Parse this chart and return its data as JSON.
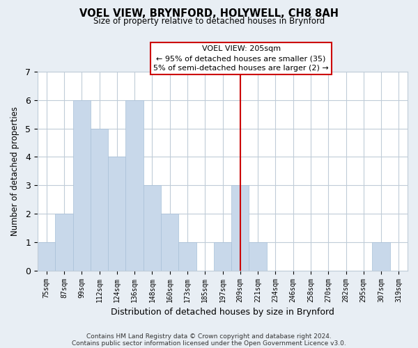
{
  "title": "VOEL VIEW, BRYNFORD, HOLYWELL, CH8 8AH",
  "subtitle": "Size of property relative to detached houses in Brynford",
  "xlabel": "Distribution of detached houses by size in Brynford",
  "ylabel": "Number of detached properties",
  "bar_labels": [
    "75sqm",
    "87sqm",
    "99sqm",
    "112sqm",
    "124sqm",
    "136sqm",
    "148sqm",
    "160sqm",
    "173sqm",
    "185sqm",
    "197sqm",
    "209sqm",
    "221sqm",
    "234sqm",
    "246sqm",
    "258sqm",
    "270sqm",
    "282sqm",
    "295sqm",
    "307sqm",
    "319sqm"
  ],
  "bar_values": [
    1,
    2,
    6,
    5,
    4,
    6,
    3,
    2,
    1,
    0,
    1,
    3,
    1,
    0,
    0,
    0,
    0,
    0,
    0,
    1,
    0
  ],
  "bar_color": "#c8d8ea",
  "bar_edge_color": "#a8c0d8",
  "highlight_bar_index": 11,
  "highlight_line_color": "#cc0000",
  "ylim": [
    0,
    7
  ],
  "yticks": [
    0,
    1,
    2,
    3,
    4,
    5,
    6,
    7
  ],
  "annotation_title": "VOEL VIEW: 205sqm",
  "annotation_line1": "← 95% of detached houses are smaller (35)",
  "annotation_line2": "5% of semi-detached houses are larger (2) →",
  "footer_line1": "Contains HM Land Registry data © Crown copyright and database right 2024.",
  "footer_line2": "Contains public sector information licensed under the Open Government Licence v3.0.",
  "background_color": "#e8eef4",
  "plot_background_color": "#ffffff",
  "grid_color": "#c0ccd8"
}
